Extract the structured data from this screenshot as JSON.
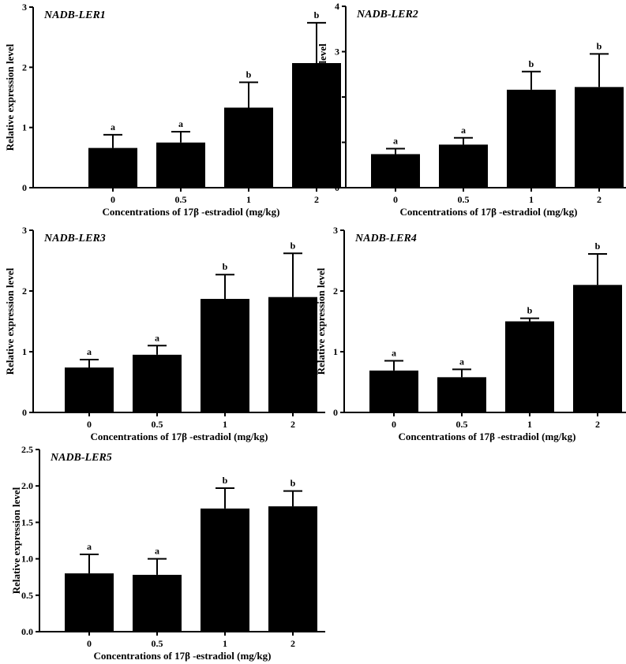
{
  "figure": {
    "bar_color": "#000000",
    "background": "#ffffff"
  },
  "chart_data": [
    {
      "type": "bar",
      "title": "NADB-LER1",
      "xlabel": "Concentrations of 17β -estradiol (mg/kg)",
      "ylabel": "Relative expression level",
      "categories": [
        "0",
        "0.5",
        "1",
        "2"
      ],
      "values": [
        0.66,
        0.75,
        1.33,
        2.07
      ],
      "errors": [
        0.22,
        0.18,
        0.42,
        0.67
      ],
      "letters": [
        "a",
        "a",
        "b",
        "b"
      ],
      "ylim": [
        0,
        3
      ],
      "yticks": [
        "0",
        "1",
        "2",
        "3"
      ]
    },
    {
      "type": "bar",
      "title": "NADB-LER2",
      "xlabel": "Concentrations of 17β -estradiol (mg/kg)",
      "ylabel": "Relative expression level",
      "categories": [
        "0",
        "0.5",
        "1",
        "2"
      ],
      "values": [
        0.74,
        0.95,
        2.16,
        2.22
      ],
      "errors": [
        0.12,
        0.15,
        0.4,
        0.73
      ],
      "letters": [
        "a",
        "a",
        "b",
        "b"
      ],
      "ylim": [
        0,
        4
      ],
      "yticks": [
        "0",
        "1",
        "2",
        "3",
        "4"
      ]
    },
    {
      "type": "bar",
      "title": "NADB-LER3",
      "xlabel": "Concentrations of 17β -estradiol (mg/kg)",
      "ylabel": "Relative expression level",
      "categories": [
        "0",
        "0.5",
        "1",
        "2"
      ],
      "values": [
        0.74,
        0.95,
        1.87,
        1.9
      ],
      "errors": [
        0.13,
        0.15,
        0.4,
        0.72
      ],
      "letters": [
        "a",
        "a",
        "b",
        "b"
      ],
      "ylim": [
        0,
        3
      ],
      "yticks": [
        "0",
        "1",
        "2",
        "3"
      ]
    },
    {
      "type": "bar",
      "title": "NADB-LER4",
      "xlabel": "Concentrations of 17β -estradiol (mg/kg)",
      "ylabel": "Relative expression level",
      "categories": [
        "0",
        "0.5",
        "1",
        "2"
      ],
      "values": [
        0.69,
        0.58,
        1.5,
        2.1
      ],
      "errors": [
        0.16,
        0.13,
        0.05,
        0.51
      ],
      "letters": [
        "a",
        "a",
        "b",
        "b"
      ],
      "ylim": [
        0,
        3
      ],
      "yticks": [
        "0",
        "1",
        "2",
        "3"
      ]
    },
    {
      "type": "bar",
      "title": "NADB-LER5",
      "xlabel": "Concentrations of 17β -estradiol (mg/kg)",
      "ylabel": "Relative expression level",
      "categories": [
        "0",
        "0.5",
        "1",
        "2"
      ],
      "values": [
        0.8,
        0.78,
        1.69,
        1.72
      ],
      "errors": [
        0.26,
        0.22,
        0.28,
        0.21
      ],
      "letters": [
        "a",
        "a",
        "b",
        "b"
      ],
      "ylim": [
        0,
        2.5
      ],
      "yticks": [
        "0.0",
        "0.5",
        "1.0",
        "1.5",
        "2.0",
        "2.5"
      ]
    }
  ]
}
